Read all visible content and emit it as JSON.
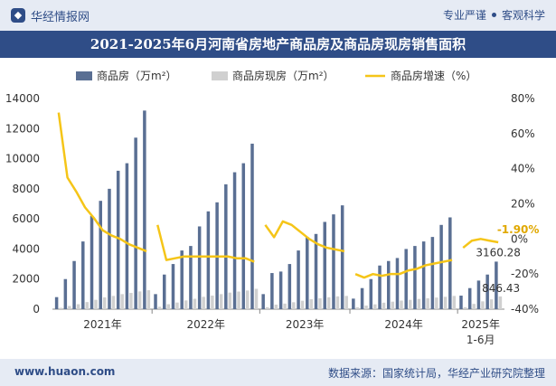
{
  "header": {
    "brand": "华经情报网",
    "slogan_left": "专业严谨",
    "slogan_right": "客观科学"
  },
  "footer": {
    "website": "www.huaon.com",
    "source": "数据来源：国家统计局，华经产业研究院整理"
  },
  "colors": {
    "header_bg": "#e6ebf4",
    "title_bg": "#2f4d87",
    "bar_main": "#5a6f93",
    "bar_secondary": "#d0d0d0",
    "line": "#f5c518",
    "label_orange": "#e0a800"
  },
  "chart_data": {
    "type": "bar",
    "title": "2021-2025年6月河南省房地产商品房及商品房现房销售面积",
    "legend_position": "top",
    "grid": false,
    "series": [
      {
        "name": "商品房（万m²）",
        "kind": "bar",
        "axis": "left",
        "values": [
          [
            800,
            2000,
            3200,
            4500,
            6200,
            7200,
            8000,
            9200,
            9700,
            11400,
            13200
          ],
          [
            1000,
            2300,
            3000,
            3900,
            4200,
            5500,
            6500,
            7100,
            8300,
            9100,
            9700,
            11000
          ],
          [
            1000,
            2400,
            2500,
            3000,
            3900,
            4800,
            5000,
            5800,
            6300,
            6900
          ],
          [
            700,
            1400,
            2000,
            2900,
            3200,
            3400,
            4000,
            4200,
            4500,
            4800,
            5600,
            6100
          ],
          [
            900,
            1400,
            1900,
            2300,
            3160.28
          ]
        ]
      },
      {
        "name": "商品房现房（万m²）",
        "kind": "bar",
        "axis": "left",
        "values": [
          [
            90,
            210,
            330,
            470,
            620,
            780,
            880,
            1000,
            1080,
            1180,
            1260
          ],
          [
            160,
            330,
            440,
            580,
            690,
            820,
            900,
            1000,
            1100,
            1170,
            1240,
            1350
          ],
          [
            130,
            300,
            370,
            460,
            560,
            660,
            720,
            790,
            850,
            880
          ],
          [
            120,
            240,
            320,
            430,
            500,
            570,
            620,
            680,
            720,
            770,
            820,
            880
          ],
          [
            130,
            350,
            520,
            650,
            846.43
          ]
        ]
      },
      {
        "name": "商品房增速（%）",
        "kind": "line",
        "axis": "right",
        "values": [
          [
            72,
            35,
            27,
            18,
            12,
            5,
            2,
            0,
            -3,
            -5,
            -7
          ],
          [
            8,
            -12,
            -11,
            -10,
            -10,
            -10,
            -10,
            -10,
            -10,
            -11,
            -11,
            -13
          ],
          [
            8,
            1,
            10,
            8,
            4,
            0,
            -3,
            -5,
            -6,
            -7
          ],
          [
            -20,
            -22,
            -20,
            -21,
            -20,
            -20,
            -18,
            -17,
            -15,
            -14,
            -13,
            -12
          ],
          [
            -5,
            -1,
            0,
            -1,
            -1.9
          ]
        ]
      }
    ],
    "left_axis": {
      "ylim": [
        0,
        14000
      ],
      "ticks": [
        "0",
        "2000",
        "4000",
        "6000",
        "8000",
        "10000",
        "12000",
        "14000"
      ]
    },
    "right_axis": {
      "ylim": [
        -40,
        80
      ],
      "ticks": [
        "-40%",
        "-20%",
        "0%",
        "20%",
        "40%",
        "60%",
        "80%"
      ]
    },
    "x_groups": [
      "2021年",
      "2022年",
      "2023年",
      "2024年",
      "2025年"
    ],
    "x_group_sublabels": [
      "",
      "",
      "",
      "",
      "1-6月"
    ],
    "annotations": [
      {
        "text": "-1.90%",
        "kind": "rate"
      },
      {
        "text": "3160.28",
        "kind": "bar"
      },
      {
        "text": "846.43",
        "kind": "bar"
      }
    ]
  }
}
